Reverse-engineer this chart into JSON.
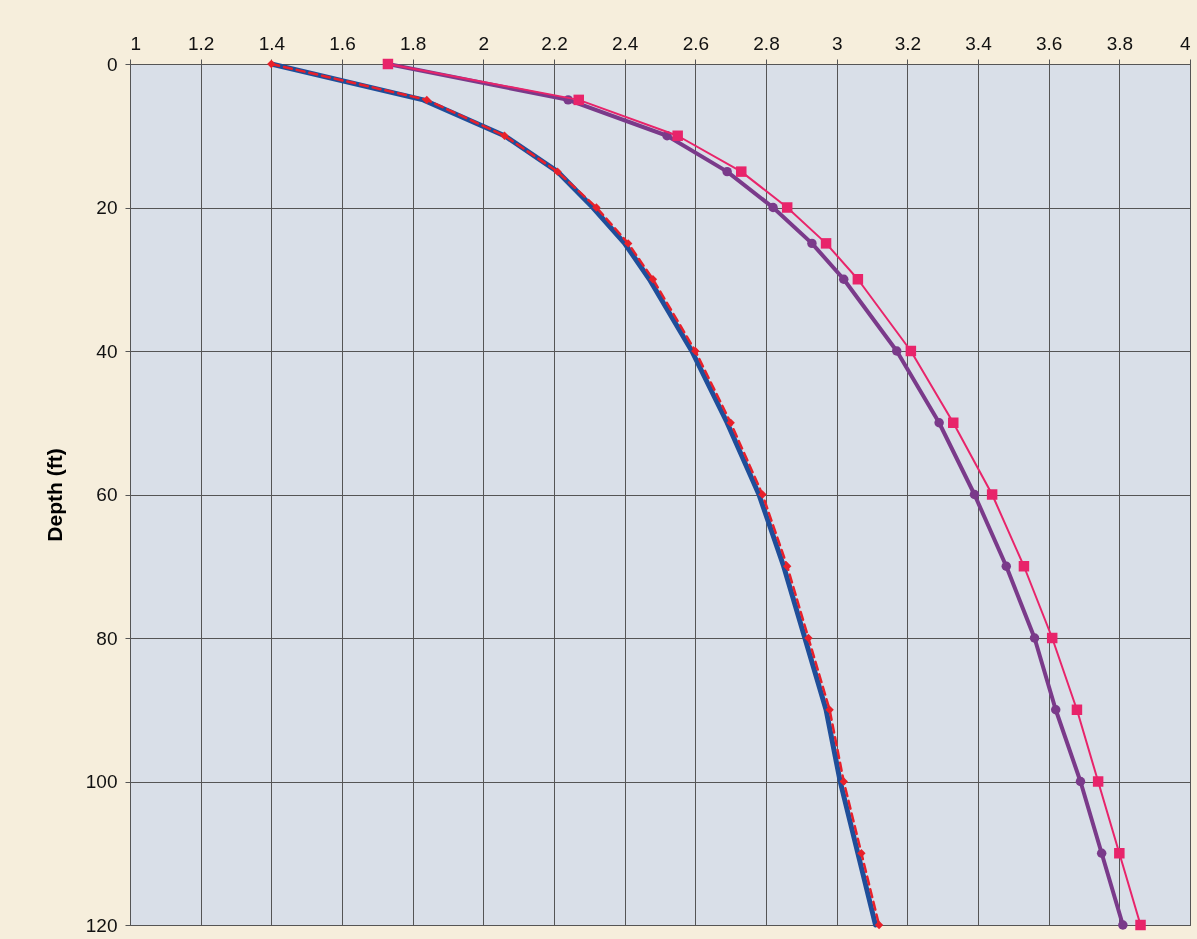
{
  "chart_data": {
    "type": "line",
    "orientation": "horizontal",
    "ylabel": "Depth (ft)",
    "x": [
      0,
      5,
      10,
      15,
      20,
      25,
      30,
      40,
      50,
      60,
      70,
      80,
      90,
      100,
      110,
      120
    ],
    "series": [
      {
        "color": "#1f4e9a",
        "line_style": "solid",
        "marker": "none",
        "values": [
          1.4,
          1.83,
          2.06,
          2.21,
          2.31,
          2.4,
          2.47,
          2.59,
          2.69,
          2.78,
          2.85,
          2.91,
          2.97,
          3.01,
          3.06,
          3.11
        ]
      },
      {
        "color": "#e8202a",
        "line_style": "dashed",
        "marker": "diamond",
        "values": [
          1.4,
          1.84,
          2.06,
          2.21,
          2.32,
          2.41,
          2.48,
          2.6,
          2.7,
          2.79,
          2.86,
          2.92,
          2.98,
          3.02,
          3.07,
          3.12
        ]
      },
      {
        "color": "#7a3a8a",
        "line_style": "solid",
        "marker": "circle",
        "values": [
          1.73,
          2.24,
          2.52,
          2.69,
          2.82,
          2.93,
          3.02,
          3.17,
          3.29,
          3.39,
          3.48,
          3.56,
          3.62,
          3.69,
          3.75,
          3.81
        ]
      },
      {
        "color": "#e8246a",
        "line_style": "solid",
        "marker": "square",
        "values": [
          1.73,
          2.27,
          2.55,
          2.73,
          2.86,
          2.97,
          3.06,
          3.21,
          3.33,
          3.44,
          3.53,
          3.61,
          3.68,
          3.74,
          3.8,
          3.86
        ]
      }
    ],
    "xlim": [
      1,
      4
    ],
    "xticks": [
      1,
      1.2,
      1.4,
      1.6,
      1.8,
      2,
      2.2,
      2.4,
      2.6,
      2.8,
      3,
      3.2,
      3.4,
      3.6,
      3.8,
      4
    ],
    "ylim": [
      120,
      0
    ],
    "yticks": [
      0,
      20,
      40,
      60,
      80,
      100,
      120
    ],
    "grid": true
  }
}
